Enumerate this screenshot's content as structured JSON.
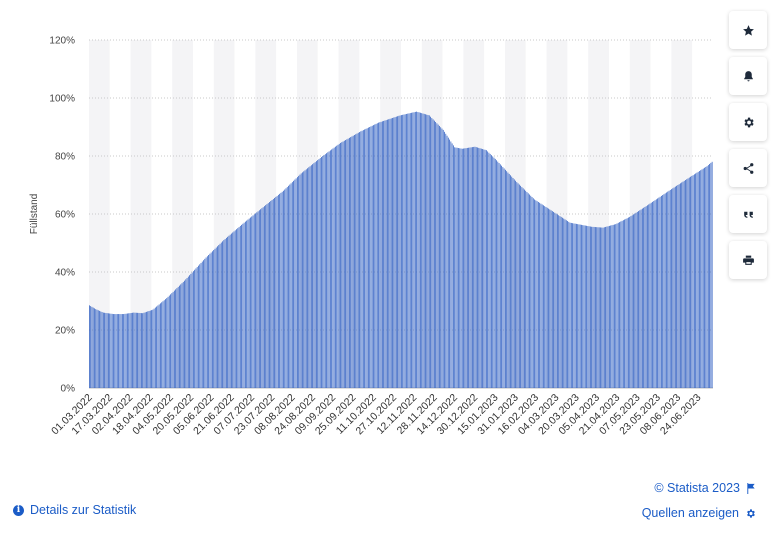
{
  "chart_data": {
    "type": "bar",
    "ylabel": "Füllstand",
    "xlabel": "",
    "ylim": [
      0,
      120
    ],
    "yticks": [
      "0%",
      "20%",
      "40%",
      "60%",
      "80%",
      "100%",
      "120%"
    ],
    "grid": true,
    "color": "#3463c4",
    "anchors": [
      {
        "date": "01.03.2022",
        "value": 28.5
      },
      {
        "date": "06.03.2022",
        "value": 27.2
      },
      {
        "date": "12.03.2022",
        "value": 26.0
      },
      {
        "date": "20.03.2022",
        "value": 25.5
      },
      {
        "date": "28.03.2022",
        "value": 25.5
      },
      {
        "date": "05.04.2022",
        "value": 26.0
      },
      {
        "date": "12.04.2022",
        "value": 25.8
      },
      {
        "date": "20.04.2022",
        "value": 27.0
      },
      {
        "date": "01.05.2022",
        "value": 31.0
      },
      {
        "date": "15.05.2022",
        "value": 37.0
      },
      {
        "date": "01.06.2022",
        "value": 45.0
      },
      {
        "date": "15.06.2022",
        "value": 51.0
      },
      {
        "date": "01.07.2022",
        "value": 57.0
      },
      {
        "date": "15.07.2022",
        "value": 62.0
      },
      {
        "date": "01.08.2022",
        "value": 68.0
      },
      {
        "date": "15.08.2022",
        "value": 74.0
      },
      {
        "date": "01.09.2022",
        "value": 80.0
      },
      {
        "date": "15.09.2022",
        "value": 84.5
      },
      {
        "date": "01.10.2022",
        "value": 88.5
      },
      {
        "date": "15.10.2022",
        "value": 91.5
      },
      {
        "date": "01.11.2022",
        "value": 94.0
      },
      {
        "date": "14.11.2022",
        "value": 95.3
      },
      {
        "date": "24.11.2022",
        "value": 94.0
      },
      {
        "date": "05.12.2022",
        "value": 89.0
      },
      {
        "date": "14.12.2022",
        "value": 83.0
      },
      {
        "date": "20.12.2022",
        "value": 82.5
      },
      {
        "date": "30.12.2022",
        "value": 83.2
      },
      {
        "date": "08.01.2023",
        "value": 82.0
      },
      {
        "date": "15.01.2023",
        "value": 79.0
      },
      {
        "date": "01.02.2023",
        "value": 71.0
      },
      {
        "date": "15.02.2023",
        "value": 65.0
      },
      {
        "date": "01.03.2023",
        "value": 61.0
      },
      {
        "date": "15.03.2023",
        "value": 57.0
      },
      {
        "date": "01.04.2023",
        "value": 55.6
      },
      {
        "date": "10.04.2023",
        "value": 55.3
      },
      {
        "date": "20.04.2023",
        "value": 56.5
      },
      {
        "date": "01.05.2023",
        "value": 59.0
      },
      {
        "date": "15.05.2023",
        "value": 63.0
      },
      {
        "date": "01.06.2023",
        "value": 68.0
      },
      {
        "date": "15.06.2023",
        "value": 72.0
      },
      {
        "date": "01.07.2023",
        "value": 76.5
      },
      {
        "date": "05.07.2023",
        "value": 78.0
      }
    ],
    "tick_labels": [
      "01.03.2022",
      "17.03.2022",
      "02.04.2022",
      "18.04.2022",
      "04.05.2022",
      "20.05.2022",
      "05.06.2022",
      "21.06.2022",
      "07.07.2022",
      "23.07.2022",
      "08.08.2022",
      "24.08.2022",
      "09.09.2022",
      "25.09.2022",
      "11.10.2022",
      "27.10.2022",
      "12.11.2022",
      "28.11.2022",
      "14.12.2022",
      "30.12.2022",
      "15.01.2023",
      "31.01.2023",
      "16.02.2023",
      "04.03.2023",
      "20.03.2023",
      "05.04.2023",
      "21.04.2023",
      "07.05.2023",
      "23.05.2023",
      "08.06.2023",
      "24.06.2023"
    ]
  },
  "footer": {
    "copyright": "© Statista 2023",
    "details": "Details zur Statistik",
    "sources": "Quellen anzeigen"
  },
  "toolbar": {
    "icons": [
      "star-icon",
      "bell-icon",
      "gear-icon",
      "share-icon",
      "quote-icon",
      "print-icon"
    ]
  }
}
